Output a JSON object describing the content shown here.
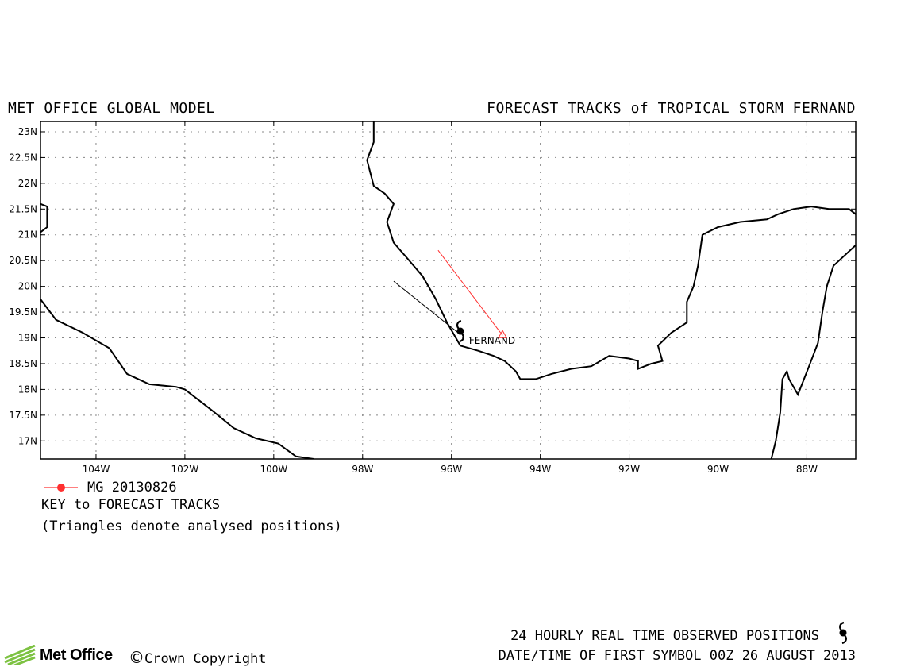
{
  "header": {
    "left_title": "MET OFFICE GLOBAL MODEL",
    "right_title": "FORECAST TRACKS of TROPICAL STORM FERNAND"
  },
  "map": {
    "lon_range": [
      -105.25,
      -86.9
    ],
    "lat_range": [
      16.65,
      23.2
    ],
    "lat_ticks": [
      {
        "v": 23,
        "label": "23N"
      },
      {
        "v": 22.5,
        "label": "22.5N"
      },
      {
        "v": 22,
        "label": "22N"
      },
      {
        "v": 21.5,
        "label": "21.5N"
      },
      {
        "v": 21,
        "label": "21N"
      },
      {
        "v": 20.5,
        "label": "20.5N"
      },
      {
        "v": 20,
        "label": "20N"
      },
      {
        "v": 19.5,
        "label": "19.5N"
      },
      {
        "v": 19,
        "label": "19N"
      },
      {
        "v": 18.5,
        "label": "18.5N"
      },
      {
        "v": 18,
        "label": "18N"
      },
      {
        "v": 17.5,
        "label": "17.5N"
      },
      {
        "v": 17,
        "label": "17N"
      }
    ],
    "lon_ticks": [
      {
        "v": -104,
        "label": "104W"
      },
      {
        "v": -102,
        "label": "102W"
      },
      {
        "v": -100,
        "label": "100W"
      },
      {
        "v": -98,
        "label": "98W"
      },
      {
        "v": -96,
        "label": "96W"
      },
      {
        "v": -94,
        "label": "94W"
      },
      {
        "v": -92,
        "label": "92W"
      },
      {
        "v": -90,
        "label": "90W"
      },
      {
        "v": -88,
        "label": "88W"
      }
    ],
    "grid": true,
    "coastlines": [
      [
        [
          -105.25,
          21.05
        ],
        [
          -105.1,
          21.15
        ],
        [
          -105.1,
          21.55
        ],
        [
          -105.25,
          21.6
        ]
      ],
      [
        [
          -105.25,
          19.75
        ],
        [
          -104.9,
          19.35
        ],
        [
          -104.3,
          19.1
        ],
        [
          -103.7,
          18.8
        ],
        [
          -103.3,
          18.3
        ],
        [
          -102.8,
          18.1
        ],
        [
          -102.2,
          18.05
        ],
        [
          -102.0,
          18.0
        ],
        [
          -101.4,
          17.6
        ],
        [
          -100.9,
          17.25
        ],
        [
          -100.4,
          17.05
        ],
        [
          -99.9,
          16.95
        ],
        [
          -99.5,
          16.7
        ],
        [
          -99.1,
          16.65
        ]
      ],
      [
        [
          -97.75,
          23.2
        ],
        [
          -97.75,
          22.8
        ],
        [
          -97.9,
          22.45
        ],
        [
          -97.75,
          21.95
        ],
        [
          -97.5,
          21.8
        ],
        [
          -97.3,
          21.6
        ],
        [
          -97.45,
          21.25
        ],
        [
          -97.3,
          20.85
        ],
        [
          -97.0,
          20.55
        ],
        [
          -96.65,
          20.2
        ],
        [
          -96.35,
          19.75
        ],
        [
          -96.1,
          19.3
        ],
        [
          -95.8,
          18.85
        ],
        [
          -95.4,
          18.75
        ],
        [
          -95.05,
          18.65
        ],
        [
          -94.8,
          18.55
        ],
        [
          -94.55,
          18.35
        ],
        [
          -94.45,
          18.2
        ],
        [
          -94.1,
          18.2
        ],
        [
          -93.75,
          18.3
        ],
        [
          -93.3,
          18.4
        ],
        [
          -92.85,
          18.45
        ],
        [
          -92.45,
          18.65
        ],
        [
          -92.0,
          18.6
        ],
        [
          -91.8,
          18.55
        ],
        [
          -91.8,
          18.4
        ],
        [
          -91.5,
          18.5
        ],
        [
          -91.25,
          18.55
        ],
        [
          -91.35,
          18.85
        ],
        [
          -91.05,
          19.1
        ],
        [
          -90.7,
          19.3
        ],
        [
          -90.7,
          19.7
        ],
        [
          -90.55,
          20.0
        ],
        [
          -90.45,
          20.4
        ],
        [
          -90.35,
          21.0
        ],
        [
          -90.0,
          21.15
        ],
        [
          -89.5,
          21.25
        ],
        [
          -88.9,
          21.3
        ],
        [
          -88.65,
          21.4
        ],
        [
          -88.3,
          21.5
        ],
        [
          -87.9,
          21.55
        ],
        [
          -87.5,
          21.5
        ],
        [
          -87.05,
          21.5
        ],
        [
          -86.9,
          21.4
        ]
      ],
      [
        [
          -86.9,
          20.8
        ],
        [
          -87.15,
          20.6
        ],
        [
          -87.4,
          20.4
        ],
        [
          -87.55,
          20.0
        ],
        [
          -87.65,
          19.5
        ],
        [
          -87.75,
          18.9
        ],
        [
          -87.95,
          18.45
        ],
        [
          -88.2,
          17.9
        ],
        [
          -88.4,
          18.2
        ],
        [
          -88.45,
          18.35
        ],
        [
          -88.55,
          18.2
        ],
        [
          -88.6,
          17.55
        ],
        [
          -88.7,
          17.0
        ],
        [
          -88.8,
          16.65
        ]
      ]
    ],
    "observed_track": [
      [
        -97.3,
        20.1
      ],
      [
        -95.85,
        19.1
      ]
    ],
    "storm_position": [
      -95.8,
      19.1
    ],
    "storm_label": "FERNAND",
    "track_color": "#000000"
  },
  "forecast_tracks": [
    {
      "model": "MG",
      "date": "20130826",
      "label": "MG 20130826",
      "color": "#ff3030",
      "points": [
        [
          -96.3,
          20.7
        ],
        [
          -94.85,
          19.05
        ]
      ],
      "analysed_position": [
        -94.85,
        19.05
      ]
    }
  ],
  "key": {
    "title": "KEY to FORECAST TRACKS",
    "note": "(Triangles denote analysed positions)"
  },
  "footer": {
    "observed_label": "24 HOURLY REAL TIME OBSERVED POSITIONS",
    "first_symbol": "DATE/TIME OF FIRST SYMBOL 00Z 26 AUGUST 2013",
    "logo_text": "Met Office",
    "copyright_symbol": "©",
    "copyright": "Crown Copyright"
  },
  "icons": {
    "storm": "tropical-storm-icon",
    "logo": "met-office-logo-icon",
    "triangle": "analysed-position-triangle-icon"
  }
}
